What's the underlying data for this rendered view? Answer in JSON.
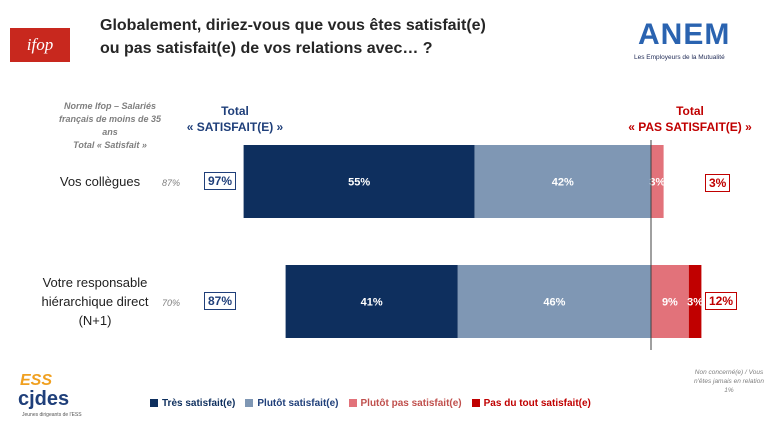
{
  "logos": {
    "ifop": "ifop",
    "anem": "ANEM",
    "anem_sub": "Les Employeurs de la Mutualité",
    "ess": "ESS",
    "cjdes": "cjdes",
    "cjdes_sub": "Jeunes dirigeants de l'ESS"
  },
  "title": {
    "line1": "Globalement, diriez-vous que vous êtes satisfait(e)",
    "line2": "ou pas satisfait(e) de vos relations avec… ?"
  },
  "headers": {
    "norm_line1": "Norme Ifop – Salariés",
    "norm_line2": "français de moins de 35",
    "norm_line3": "ans",
    "norm_line4": "Total « Satisfait »",
    "total_sat_line1": "Total",
    "total_sat_line2": "« SATISFAIT(E) »",
    "total_notsat_line1": "Total",
    "total_notsat_line2": "« PAS SATISFAIT(E) »"
  },
  "rows": [
    {
      "label_lines": [
        "Vos collègues"
      ],
      "norm": "87%",
      "total_sat": "97%",
      "total_notsat": "3%"
    },
    {
      "label_lines": [
        "Votre responsable",
        "hiérarchique direct",
        "(N+1)"
      ],
      "norm": "70%",
      "total_sat": "87%",
      "total_notsat": "12%"
    }
  ],
  "footnote": "Non concerné(e) / Vous n'êtes jamais en relation 1%",
  "colors": {
    "tres_satisfait": "#0e2f5e",
    "plutot_satisfait": "#7f97b4",
    "plutot_pas": "#e2727a",
    "pas_du_tout": "#c00000"
  },
  "chart_data": {
    "type": "bar",
    "orientation": "horizontal",
    "stacked": "diverging",
    "categories": [
      "Vos collègues",
      "Votre responsable hiérarchique direct (N+1)"
    ],
    "series": [
      {
        "name": "Très satisfait(e)",
        "values": [
          55,
          41
        ],
        "labels": [
          "55%",
          "41%"
        ],
        "color": "#0e2f5e"
      },
      {
        "name": "Plutôt satisfait(e)",
        "values": [
          42,
          46
        ],
        "labels": [
          "42%",
          "46%"
        ],
        "color": "#7f97b4"
      },
      {
        "name": "Plutôt pas satisfait(e)",
        "values": [
          3,
          9
        ],
        "labels": [
          "3%",
          "9%"
        ],
        "color": "#e2727a"
      },
      {
        "name": "Pas du tout satisfait(e)",
        "values": [
          0,
          3
        ],
        "labels": [
          "",
          "3%"
        ],
        "color": "#c00000"
      }
    ],
    "legend_position": "bottom"
  }
}
